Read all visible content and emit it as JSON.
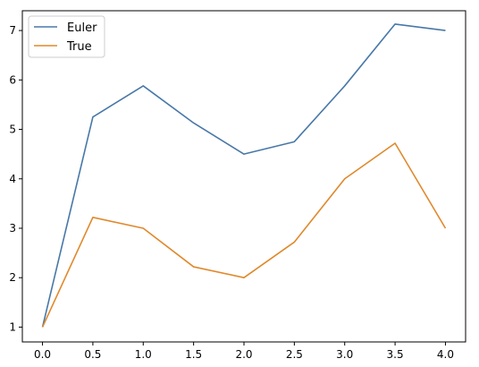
{
  "chart_data": {
    "type": "line",
    "title": "",
    "xlabel": "",
    "ylabel": "",
    "x": [
      0.0,
      0.5,
      1.0,
      1.5,
      2.0,
      2.5,
      3.0,
      3.5,
      4.0
    ],
    "xlim": [
      -0.2,
      4.2
    ],
    "ylim": [
      0.7,
      7.4
    ],
    "x_ticks": [
      "0.0",
      "0.5",
      "1.0",
      "1.5",
      "2.0",
      "2.5",
      "3.0",
      "3.5",
      "4.0"
    ],
    "y_ticks": [
      "1",
      "2",
      "3",
      "4",
      "5",
      "6",
      "7"
    ],
    "grid": false,
    "legend_position": "top-left",
    "series": [
      {
        "name": "Euler",
        "color": "#4878a8",
        "values": [
          1.0,
          5.25,
          5.88,
          5.13,
          4.5,
          4.75,
          5.88,
          7.13,
          7.0
        ]
      },
      {
        "name": "True",
        "color": "#e0892c",
        "values": [
          1.0,
          3.22,
          3.0,
          2.22,
          2.0,
          2.72,
          4.0,
          4.72,
          3.0
        ]
      }
    ]
  }
}
